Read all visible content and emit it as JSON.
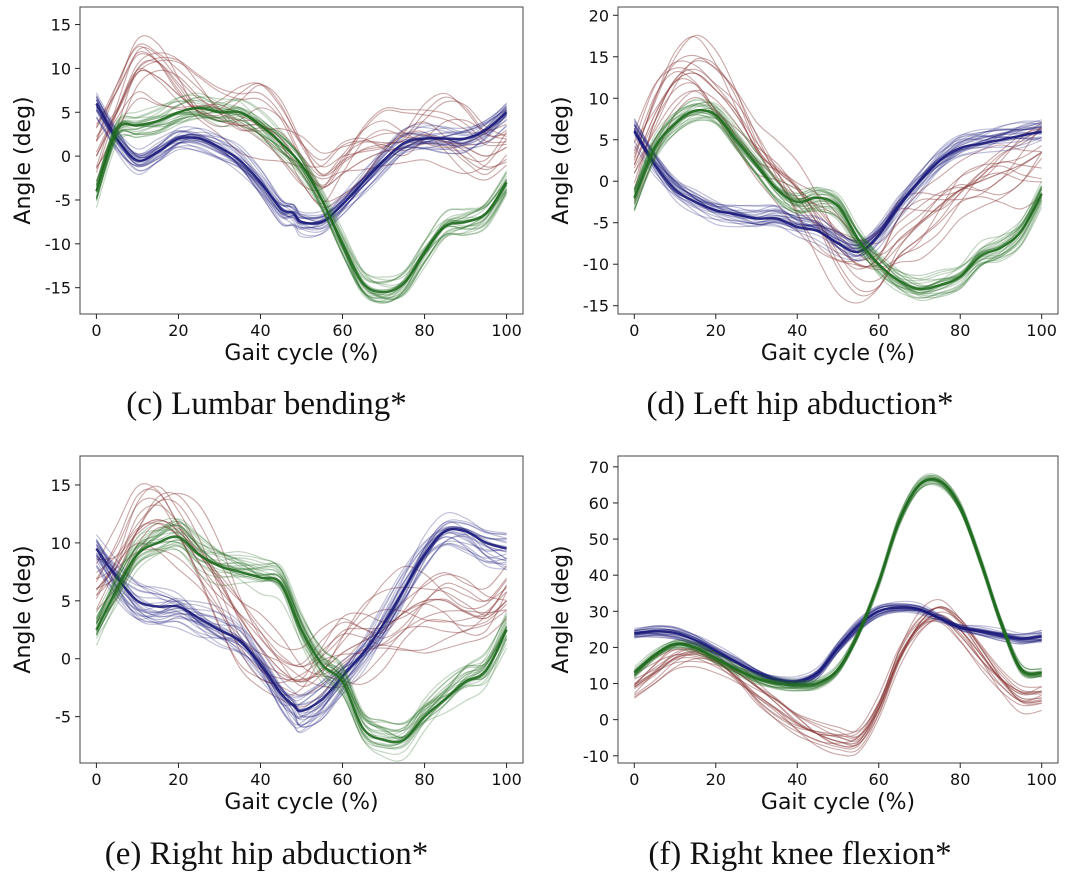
{
  "colors": {
    "blue": "#1a1a7a",
    "green": "#1f6b1f",
    "red": "#8c3c3c"
  },
  "chart_data": [
    {
      "type": "line",
      "caption": "(c) Lumbar bending*",
      "xlabel": "Gait cycle (%)",
      "ylabel": "Angle (deg)",
      "xlim": [
        -4,
        104
      ],
      "ylim": [
        -18,
        17
      ],
      "xticks": [
        0,
        20,
        40,
        60,
        80,
        100
      ],
      "yticks": [
        -15,
        -10,
        -5,
        0,
        5,
        10,
        15
      ],
      "series": [
        {
          "color": "blue",
          "spread": 1.0,
          "count": 26,
          "x": [
            0,
            5,
            10,
            15,
            20,
            25,
            30,
            35,
            40,
            45,
            48,
            50,
            55,
            60,
            65,
            70,
            75,
            80,
            85,
            90,
            95,
            100
          ],
          "y": [
            6,
            2,
            -0.5,
            0.5,
            2,
            2,
            1,
            -0.5,
            -3,
            -6,
            -6.5,
            -7.5,
            -7.5,
            -5.5,
            -3,
            -0.5,
            1.5,
            2,
            2,
            2,
            3,
            5
          ]
        },
        {
          "color": "green",
          "spread": 1.0,
          "count": 26,
          "x": [
            0,
            5,
            10,
            15,
            20,
            25,
            30,
            35,
            40,
            45,
            50,
            55,
            60,
            65,
            70,
            75,
            80,
            85,
            90,
            95,
            100
          ],
          "y": [
            -4,
            3,
            3.5,
            4,
            5,
            5.5,
            5,
            5,
            3.5,
            1.5,
            -1,
            -5,
            -10,
            -14.5,
            -15.5,
            -14.5,
            -11,
            -8,
            -7.5,
            -6.5,
            -3
          ]
        },
        {
          "color": "red",
          "spread": 3.0,
          "count": 14,
          "x": [
            0,
            5,
            10,
            15,
            20,
            25,
            30,
            35,
            40,
            45,
            50,
            55,
            60,
            65,
            70,
            75,
            80,
            85,
            90,
            95,
            100
          ],
          "y": [
            0,
            5,
            9.5,
            9,
            7,
            5,
            4,
            3.5,
            3.5,
            2,
            -1,
            -3.5,
            -2,
            -0.5,
            0.5,
            1,
            2,
            2,
            1,
            0,
            1
          ]
        }
      ]
    },
    {
      "type": "line",
      "caption": "(d) Left hip abduction*",
      "xlabel": "Gait cycle (%)",
      "ylabel": "Angle (deg)",
      "xlim": [
        -4,
        104
      ],
      "ylim": [
        -16,
        21
      ],
      "xticks": [
        0,
        20,
        40,
        60,
        80,
        100
      ],
      "yticks": [
        -15,
        -10,
        -5,
        0,
        5,
        10,
        15,
        20
      ],
      "series": [
        {
          "color": "blue",
          "spread": 1.0,
          "count": 26,
          "x": [
            0,
            5,
            10,
            15,
            20,
            25,
            30,
            35,
            40,
            45,
            50,
            55,
            60,
            65,
            70,
            75,
            80,
            85,
            90,
            95,
            100
          ],
          "y": [
            6,
            2,
            -1,
            -2.5,
            -3.5,
            -4,
            -4.5,
            -4.5,
            -5.5,
            -6,
            -7.5,
            -8.5,
            -6.5,
            -3,
            0,
            2.5,
            4,
            4.5,
            5,
            5.5,
            6
          ]
        },
        {
          "color": "green",
          "spread": 1.0,
          "count": 26,
          "x": [
            0,
            5,
            10,
            15,
            20,
            25,
            30,
            35,
            40,
            45,
            50,
            55,
            60,
            65,
            70,
            75,
            80,
            85,
            90,
            95,
            100
          ],
          "y": [
            -2,
            4,
            7,
            8.5,
            8,
            5,
            2,
            -1,
            -2.5,
            -2,
            -3,
            -7,
            -10,
            -12,
            -13,
            -12.5,
            -11.5,
            -9,
            -8,
            -6,
            -1.5
          ]
        },
        {
          "color": "red",
          "spread": 3.0,
          "count": 14,
          "x": [
            0,
            5,
            10,
            15,
            20,
            25,
            30,
            35,
            40,
            45,
            50,
            55,
            60,
            65,
            70,
            75,
            80,
            85,
            90,
            95,
            100
          ],
          "y": [
            2,
            8,
            12,
            13,
            11,
            8,
            4,
            1,
            -2,
            -5,
            -8,
            -10,
            -10,
            -7,
            -5,
            -3,
            -1,
            0,
            1,
            2,
            3.5
          ]
        }
      ]
    },
    {
      "type": "line",
      "caption": "(e) Right hip abduction*",
      "xlabel": "Gait cycle (%)",
      "ylabel": "Angle (deg)",
      "xlim": [
        -4,
        104
      ],
      "ylim": [
        -9,
        17.5
      ],
      "xticks": [
        0,
        20,
        40,
        60,
        80,
        100
      ],
      "yticks": [
        -5,
        0,
        5,
        10,
        15
      ],
      "series": [
        {
          "color": "blue",
          "spread": 1.2,
          "count": 26,
          "x": [
            0,
            5,
            10,
            15,
            20,
            25,
            30,
            35,
            40,
            45,
            48,
            50,
            55,
            60,
            65,
            70,
            75,
            80,
            85,
            90,
            95,
            100
          ],
          "y": [
            9.5,
            7,
            5,
            4.5,
            4.5,
            3.5,
            2.5,
            1.5,
            -0.5,
            -3,
            -4,
            -4.5,
            -3.5,
            -1.5,
            0.5,
            3,
            6,
            9,
            11,
            11,
            10,
            9.5
          ]
        },
        {
          "color": "green",
          "spread": 1.0,
          "count": 26,
          "x": [
            0,
            5,
            10,
            15,
            20,
            25,
            30,
            35,
            40,
            45,
            50,
            55,
            60,
            65,
            70,
            75,
            80,
            85,
            90,
            95,
            100
          ],
          "y": [
            2.5,
            6,
            9,
            10,
            10.5,
            9,
            8,
            7.5,
            7,
            6.5,
            2.5,
            -0.5,
            -2,
            -6,
            -7,
            -7,
            -5,
            -3.5,
            -2,
            -1,
            2.5
          ]
        },
        {
          "color": "red",
          "spread": 2.5,
          "count": 14,
          "x": [
            0,
            5,
            10,
            15,
            20,
            25,
            30,
            35,
            40,
            45,
            50,
            55,
            60,
            65,
            70,
            75,
            80,
            85,
            90,
            95,
            100
          ],
          "y": [
            6,
            8,
            11,
            12,
            11,
            9,
            6.5,
            3.5,
            1,
            -1,
            -2,
            -1,
            0.5,
            1.5,
            2.5,
            4,
            5,
            5,
            4,
            3.5,
            5
          ]
        }
      ]
    },
    {
      "type": "line",
      "caption": "(f) Right knee flexion*",
      "xlabel": "Gait cycle (%)",
      "ylabel": "Angle (deg)",
      "xlim": [
        -4,
        104
      ],
      "ylim": [
        -12,
        73
      ],
      "xticks": [
        0,
        20,
        40,
        60,
        80,
        100
      ],
      "yticks": [
        -10,
        0,
        10,
        20,
        30,
        40,
        50,
        60,
        70
      ],
      "series": [
        {
          "color": "blue",
          "spread": 1.0,
          "count": 26,
          "x": [
            0,
            5,
            10,
            15,
            20,
            25,
            30,
            35,
            40,
            45,
            50,
            55,
            60,
            65,
            70,
            75,
            80,
            85,
            90,
            95,
            100
          ],
          "y": [
            24,
            24.5,
            24,
            22,
            19,
            16,
            13,
            11,
            10.5,
            13,
            20,
            26,
            30,
            31,
            30.5,
            28,
            25.5,
            24.5,
            23.5,
            22.5,
            23
          ]
        },
        {
          "color": "green",
          "spread": 1.0,
          "count": 26,
          "x": [
            0,
            5,
            10,
            15,
            20,
            25,
            30,
            35,
            40,
            45,
            50,
            55,
            60,
            65,
            70,
            75,
            80,
            85,
            90,
            95,
            100
          ],
          "y": [
            13,
            18,
            21,
            20,
            17,
            14,
            11.5,
            10,
            9.5,
            10,
            14,
            24,
            38,
            55,
            65,
            66,
            59,
            44,
            27,
            14,
            13
          ]
        },
        {
          "color": "red",
          "spread": 2.5,
          "count": 14,
          "x": [
            0,
            5,
            10,
            15,
            20,
            25,
            30,
            35,
            40,
            45,
            50,
            55,
            60,
            65,
            70,
            75,
            80,
            85,
            90,
            95,
            100
          ],
          "y": [
            9,
            13,
            17,
            18,
            16,
            12,
            7,
            3,
            -1,
            -4,
            -6,
            -6,
            3,
            17,
            26,
            29,
            25,
            18,
            11,
            6,
            6
          ]
        }
      ]
    }
  ]
}
